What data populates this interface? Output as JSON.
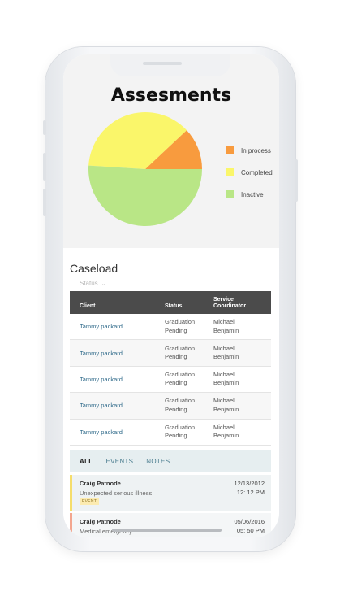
{
  "chart": {
    "title": "Assesments",
    "legend": [
      "In process",
      "Completed",
      "Inactive"
    ]
  },
  "chart_data": {
    "type": "pie",
    "title": "Assesments",
    "labels": [
      "In process",
      "Completed",
      "Inactive"
    ],
    "values": [
      12,
      37,
      51
    ],
    "colors": [
      "#f89b3e",
      "#faf66a",
      "#b9e686"
    ],
    "legend_position": "right"
  },
  "caseload": {
    "title": "Caseload",
    "status_filter": "Status",
    "chevron_icon": "chevron-down-icon",
    "columns": [
      "Client",
      "Status",
      "Service Coordinator"
    ],
    "rows": [
      {
        "client": "Tammy packard",
        "status": "Graduation Pending",
        "coordinator": "Michael Benjamin"
      },
      {
        "client": "Tammy packard",
        "status": "Graduation Pending",
        "coordinator": "Michael Benjamin"
      },
      {
        "client": "Tammy packard",
        "status": "Graduation Pending",
        "coordinator": "Michael Benjamin"
      },
      {
        "client": "Tammy packard",
        "status": "Graduation Pending",
        "coordinator": "Michael Benjamin"
      },
      {
        "client": "Tammy packard",
        "status": "Graduation Pending",
        "coordinator": "Michael Benjamin"
      }
    ]
  },
  "feed": {
    "tabs": [
      "ALL",
      "EVENTS",
      "NOTES"
    ],
    "items": [
      {
        "name": "Craig Patnode",
        "description": "Unexpected serious illness",
        "badge": "EVENT",
        "date": "12/13/2012",
        "time": "12: 12 PM",
        "accent": "#f5dd6b"
      },
      {
        "name": "Craig Patnode",
        "description": "Medical emergency",
        "date": "05/06/2016",
        "time": "05: 50 PM",
        "accent": "#f3a68f"
      }
    ]
  }
}
